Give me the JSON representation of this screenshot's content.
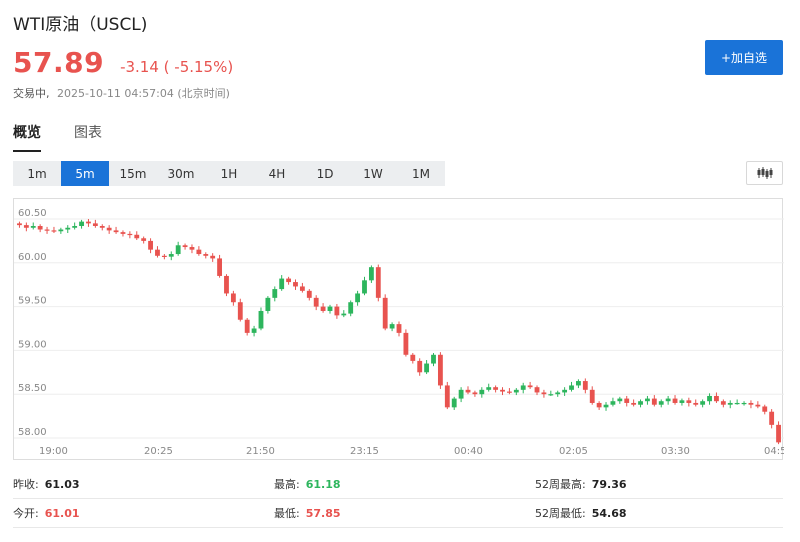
{
  "header": {
    "title": "WTI原油（USCL)",
    "price": "57.89",
    "change": "-3.14 ( -5.15%)",
    "status": "交易中,",
    "timestamp": "2025-10-11 04:57:04 (北京时间)",
    "add_button": "+加自选"
  },
  "tabs": [
    {
      "label": "概览",
      "active": true
    },
    {
      "label": "图表",
      "active": false
    }
  ],
  "intervals": [
    {
      "label": "1m",
      "active": false
    },
    {
      "label": "5m",
      "active": true
    },
    {
      "label": "15m",
      "active": false
    },
    {
      "label": "30m",
      "active": false
    },
    {
      "label": "1H",
      "active": false
    },
    {
      "label": "4H",
      "active": false
    },
    {
      "label": "1D",
      "active": false
    },
    {
      "label": "1W",
      "active": false
    },
    {
      "label": "1M",
      "active": false
    }
  ],
  "chart_type_icon": "candlestick-icon",
  "colors": {
    "up": "#2db55d",
    "down": "#e8534f",
    "accent": "#1a73d8",
    "grid": "#eeeeee"
  },
  "chart_data": {
    "type": "candlestick",
    "y_ticks": [
      "60.50",
      "60.00",
      "59.50",
      "59.00",
      "58.50",
      "58.00"
    ],
    "x_ticks": [
      "19:00",
      "20:25",
      "21:50",
      "23:15",
      "00:40",
      "02:05",
      "03:30",
      "04:5"
    ],
    "ylim": [
      58.0,
      60.5
    ],
    "grid": true,
    "closes": [
      60.43,
      60.4,
      60.42,
      60.38,
      60.37,
      60.36,
      60.38,
      60.4,
      60.42,
      60.47,
      60.45,
      60.42,
      60.4,
      60.37,
      60.35,
      60.33,
      60.32,
      60.28,
      60.25,
      60.15,
      60.08,
      60.07,
      60.1,
      60.2,
      60.18,
      60.15,
      60.1,
      60.08,
      60.05,
      59.85,
      59.65,
      59.55,
      59.35,
      59.2,
      59.25,
      59.45,
      59.6,
      59.7,
      59.82,
      59.78,
      59.73,
      59.68,
      59.6,
      59.5,
      59.45,
      59.5,
      59.4,
      59.42,
      59.55,
      59.65,
      59.8,
      59.95,
      59.6,
      59.25,
      59.3,
      59.2,
      58.95,
      58.88,
      58.75,
      58.85,
      58.95,
      58.6,
      58.35,
      58.45,
      58.55,
      58.52,
      58.5,
      58.55,
      58.58,
      58.55,
      58.53,
      58.52,
      58.55,
      58.6,
      58.58,
      58.52,
      58.5,
      58.5,
      58.52,
      58.55,
      58.6,
      58.65,
      58.55,
      58.4,
      58.35,
      58.38,
      58.42,
      58.45,
      58.4,
      58.38,
      58.42,
      58.45,
      58.38,
      58.42,
      58.45,
      58.4,
      58.43,
      58.4,
      58.38,
      58.42,
      58.48,
      58.42,
      58.38,
      58.4,
      58.4,
      58.4,
      58.38,
      58.36,
      58.3,
      58.15,
      57.95
    ]
  },
  "stats": {
    "row1": [
      {
        "label": "昨收:",
        "value": "61.03",
        "color": "normal"
      },
      {
        "label": "最高:",
        "value": "61.18",
        "color": "green"
      },
      {
        "label": "52周最高:",
        "value": "79.36",
        "color": "normal"
      }
    ],
    "row2": [
      {
        "label": "今开:",
        "value": "61.01",
        "color": "red"
      },
      {
        "label": "最低:",
        "value": "57.85",
        "color": "red"
      },
      {
        "label": "52周最低:",
        "value": "54.68",
        "color": "normal"
      }
    ]
  }
}
